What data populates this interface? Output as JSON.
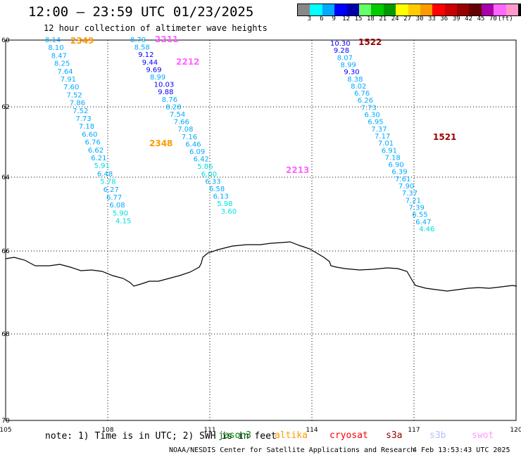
{
  "title": "12:00 – 23:59 UTC 01/23/2025",
  "subtitle": "12 hour collection of altimeter wave heights",
  "scale": {
    "unit": "(ft)",
    "colors": [
      "#888888",
      "#00ffff",
      "#00aaff",
      "#0000ff",
      "#0000aa",
      "#66ff66",
      "#00cc00",
      "#009900",
      "#ffff00",
      "#ffcc00",
      "#ff9900",
      "#ff0000",
      "#cc0000",
      "#990000",
      "#660000",
      "#aa00aa",
      "#ff66ff",
      "#ff99cc",
      "#000000"
    ],
    "labels": [
      "3",
      "6",
      "9",
      "12",
      "15",
      "18",
      "21",
      "24",
      "27",
      "30",
      "33",
      "36",
      "39",
      "42",
      "45",
      "70"
    ]
  },
  "axes": {
    "x_ticks": [
      "105",
      "108",
      "111",
      "114",
      "117",
      "120"
    ],
    "y_ticks": [
      "60",
      "62",
      "64",
      "66",
      "68",
      "70"
    ]
  },
  "tracks": [
    {
      "id": "2349",
      "color": "#ff9900",
      "points": [
        {
          "v": "8.14",
          "c": "#00aaff"
        },
        {
          "v": "8.10",
          "c": "#00aaff"
        },
        {
          "v": "8.47",
          "c": "#00aaff"
        },
        {
          "v": "8.25",
          "c": "#00aaff"
        },
        {
          "v": "7.64",
          "c": "#00aaff"
        },
        {
          "v": "7.91",
          "c": "#00aaff"
        },
        {
          "v": "7.60",
          "c": "#00aaff"
        },
        {
          "v": "7.52",
          "c": "#00aaff"
        },
        {
          "v": "7.86",
          "c": "#00aaff"
        },
        {
          "v": "7.52",
          "c": "#00aaff"
        },
        {
          "v": "7.73",
          "c": "#00aaff"
        },
        {
          "v": "7.18",
          "c": "#00aaff"
        },
        {
          "v": "6.60",
          "c": "#00aaff"
        },
        {
          "v": "6.76",
          "c": "#00aaff"
        },
        {
          "v": "6.62",
          "c": "#00aaff"
        },
        {
          "v": "6.21",
          "c": "#00aaff"
        },
        {
          "v": "5.91",
          "c": "#00dddd"
        },
        {
          "v": "6.48",
          "c": "#00aaff"
        },
        {
          "v": "5.78",
          "c": "#00dddd"
        },
        {
          "v": "6.27",
          "c": "#00aaff"
        },
        {
          "v": "6.77",
          "c": "#00aaff"
        },
        {
          "v": "6.08",
          "c": "#00aaff"
        },
        {
          "v": "5.90",
          "c": "#00dddd"
        },
        {
          "v": "4.15",
          "c": "#00dddd"
        }
      ]
    },
    {
      "id": "2348",
      "color": "#ff9900",
      "points": []
    },
    {
      "id": "2211",
      "color": "#ff66ff",
      "points": [
        {
          "v": "8.79",
          "c": "#00aaff"
        },
        {
          "v": "8.58",
          "c": "#00aaff"
        },
        {
          "v": "9.12",
          "c": "#0000ff"
        },
        {
          "v": "9.44",
          "c": "#0000ff"
        },
        {
          "v": "9.69",
          "c": "#0000ff"
        },
        {
          "v": "8.99",
          "c": "#00aaff"
        },
        {
          "v": "10.03",
          "c": "#0000ff"
        },
        {
          "v": "9.88",
          "c": "#0000ff"
        },
        {
          "v": "8.76",
          "c": "#00aaff"
        },
        {
          "v": "8.28",
          "c": "#00aaff"
        },
        {
          "v": "7.54",
          "c": "#00aaff"
        },
        {
          "v": "7.66",
          "c": "#00aaff"
        },
        {
          "v": "7.08",
          "c": "#00aaff"
        },
        {
          "v": "7.16",
          "c": "#00aaff"
        },
        {
          "v": "6.46",
          "c": "#00aaff"
        },
        {
          "v": "6.09",
          "c": "#00aaff"
        },
        {
          "v": "6.42",
          "c": "#00aaff"
        },
        {
          "v": "5.86",
          "c": "#00dddd"
        },
        {
          "v": "6.00",
          "c": "#00dddd"
        },
        {
          "v": "6.33",
          "c": "#00aaff"
        },
        {
          "v": "6.58",
          "c": "#00aaff"
        },
        {
          "v": "6.13",
          "c": "#00aaff"
        },
        {
          "v": "5.98",
          "c": "#00dddd"
        },
        {
          "v": "3.60",
          "c": "#00dddd"
        }
      ]
    },
    {
      "id": "2212",
      "color": "#ff66ff",
      "points": []
    },
    {
      "id": "2213",
      "color": "#ff66ff",
      "points": []
    },
    {
      "id": "1522",
      "color": "#990000",
      "points": [
        {
          "v": "10.30",
          "c": "#0000ff"
        },
        {
          "v": "9.28",
          "c": "#0000ff"
        },
        {
          "v": "8.07",
          "c": "#00aaff"
        },
        {
          "v": "8.99",
          "c": "#00aaff"
        },
        {
          "v": "9.30",
          "c": "#0000ff"
        },
        {
          "v": "8.38",
          "c": "#00aaff"
        },
        {
          "v": "8.02",
          "c": "#00aaff"
        },
        {
          "v": "6.76",
          "c": "#00aaff"
        },
        {
          "v": "6.26",
          "c": "#00aaff"
        },
        {
          "v": "7.73",
          "c": "#00aaff"
        },
        {
          "v": "6.30",
          "c": "#00aaff"
        },
        {
          "v": "6.95",
          "c": "#00aaff"
        },
        {
          "v": "7.37",
          "c": "#00aaff"
        },
        {
          "v": "7.17",
          "c": "#00aaff"
        },
        {
          "v": "7.01",
          "c": "#00aaff"
        },
        {
          "v": "6.91",
          "c": "#00aaff"
        },
        {
          "v": "7.18",
          "c": "#00aaff"
        },
        {
          "v": "6.90",
          "c": "#00aaff"
        },
        {
          "v": "6.39",
          "c": "#00aaff"
        },
        {
          "v": "7.61",
          "c": "#00aaff"
        },
        {
          "v": "7.90",
          "c": "#00aaff"
        },
        {
          "v": "7.37",
          "c": "#00aaff"
        },
        {
          "v": "7.21",
          "c": "#00aaff"
        },
        {
          "v": "7.39",
          "c": "#00aaff"
        },
        {
          "v": "6.55",
          "c": "#00aaff"
        },
        {
          "v": "6.47",
          "c": "#00aaff"
        },
        {
          "v": "4.46",
          "c": "#00dddd"
        }
      ]
    },
    {
      "id": "1521",
      "color": "#990000",
      "points": []
    }
  ],
  "note": "note: 1) Time is in UTC; 2) SWH is in feet",
  "satellites": [
    {
      "name": "jason3",
      "color": "#008800"
    },
    {
      "name": "altika",
      "color": "#ff9900"
    },
    {
      "name": "cryosat",
      "color": "#ff0000"
    },
    {
      "name": "s3a",
      "color": "#990000"
    },
    {
      "name": "s3b",
      "color": "#bbbbff"
    },
    {
      "name": "swot",
      "color": "#ff99ff"
    }
  ],
  "footer_org": "NOAA/NESDIS Center for Satellite Applications and Research",
  "footer_time": "4 Feb 13:53:43 UTC 2025"
}
